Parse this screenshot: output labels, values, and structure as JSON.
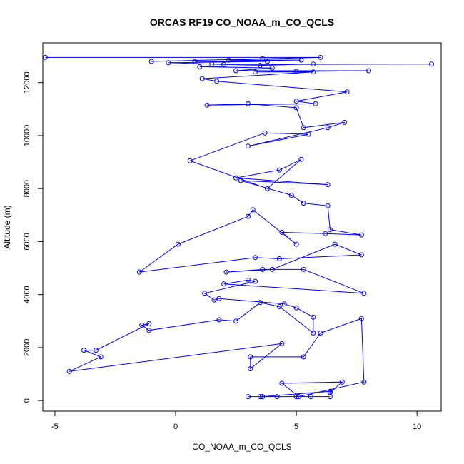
{
  "chart_data": {
    "type": "line",
    "title": "ORCAS RF19 CO_NOAA_m_CO_QCLS",
    "xlabel": "CO_NOAA_m_CO_QCLS",
    "ylabel": "Altitude (m)",
    "xlim": [
      -5.5,
      11.0
    ],
    "ylim": [
      -400,
      13500
    ],
    "x_ticks": [
      -5,
      0,
      5,
      10
    ],
    "y_ticks": [
      0,
      2000,
      4000,
      6000,
      8000,
      10000,
      12000
    ],
    "grid": false,
    "legend": "none",
    "series_color": "#0000ff",
    "series": [
      {
        "name": "",
        "points": [
          [
            -5.4,
            12950
          ],
          [
            6.0,
            12950
          ],
          [
            -1.0,
            12800
          ],
          [
            3.6,
            12900
          ],
          [
            2.2,
            12850
          ],
          [
            5.2,
            12850
          ],
          [
            0.8,
            12800
          ],
          [
            3.8,
            12800
          ],
          [
            -0.3,
            12750
          ],
          [
            1.5,
            12700
          ],
          [
            2.0,
            12680
          ],
          [
            10.6,
            12700
          ],
          [
            5.7,
            12700
          ],
          [
            3.5,
            12650
          ],
          [
            1.0,
            12600
          ],
          [
            4.0,
            12550
          ],
          [
            2.5,
            12450
          ],
          [
            8.0,
            12450
          ],
          [
            5.0,
            12420
          ],
          [
            3.3,
            12400
          ],
          [
            5.7,
            12400
          ],
          [
            1.1,
            12150
          ],
          [
            1.7,
            12050
          ],
          [
            7.1,
            11650
          ],
          [
            5.0,
            11300
          ],
          [
            5.8,
            11200
          ],
          [
            1.3,
            11150
          ],
          [
            3.0,
            11200
          ],
          [
            5.0,
            11050
          ],
          [
            5.3,
            10300
          ],
          [
            7.0,
            10500
          ],
          [
            6.3,
            10300
          ],
          [
            3.0,
            9600
          ],
          [
            5.5,
            10050
          ],
          [
            3.7,
            10100
          ],
          [
            0.6,
            9050
          ],
          [
            3.8,
            8000
          ],
          [
            5.2,
            9100
          ],
          [
            4.3,
            8700
          ],
          [
            2.5,
            8400
          ],
          [
            6.3,
            8150
          ],
          [
            2.7,
            8300
          ],
          [
            4.8,
            7750
          ],
          [
            5.3,
            7450
          ],
          [
            6.3,
            7350
          ],
          [
            6.4,
            6450
          ],
          [
            7.7,
            6250
          ],
          [
            6.2,
            6300
          ],
          [
            4.4,
            6350
          ],
          [
            5.0,
            5900
          ],
          [
            3.2,
            7200
          ],
          [
            3.0,
            6950
          ],
          [
            0.1,
            5900
          ],
          [
            -1.5,
            4850
          ],
          [
            3.3,
            5400
          ],
          [
            4.3,
            5350
          ],
          [
            7.7,
            5500
          ],
          [
            6.6,
            5900
          ],
          [
            4.0,
            4950
          ],
          [
            2.1,
            4850
          ],
          [
            3.6,
            4950
          ],
          [
            5.3,
            4950
          ],
          [
            7.8,
            4050
          ],
          [
            2.0,
            4400
          ],
          [
            3.0,
            4550
          ],
          [
            3.3,
            4500
          ],
          [
            1.2,
            4050
          ],
          [
            1.6,
            3800
          ],
          [
            1.8,
            3850
          ],
          [
            4.5,
            3650
          ],
          [
            5.0,
            3500
          ],
          [
            5.7,
            3150
          ],
          [
            5.7,
            2550
          ],
          [
            4.3,
            3550
          ],
          [
            3.5,
            3700
          ],
          [
            2.5,
            3000
          ],
          [
            1.8,
            3050
          ],
          [
            -1.1,
            2650
          ],
          [
            -1.4,
            2850
          ],
          [
            -1.1,
            2900
          ],
          [
            -3.3,
            1900
          ],
          [
            -3.8,
            1900
          ],
          [
            -3.1,
            1650
          ],
          [
            -4.4,
            1100
          ],
          [
            4.4,
            2150
          ],
          [
            3.1,
            1200
          ],
          [
            3.1,
            1650
          ],
          [
            5.3,
            1650
          ],
          [
            6.0,
            2550
          ],
          [
            7.7,
            3100
          ],
          [
            7.8,
            700
          ],
          [
            5.1,
            150
          ],
          [
            4.4,
            650
          ],
          [
            6.9,
            700
          ],
          [
            6.4,
            300
          ],
          [
            6.4,
            350
          ],
          [
            3.6,
            150
          ],
          [
            3.0,
            150
          ],
          [
            3.5,
            150
          ],
          [
            3.6,
            150
          ],
          [
            4.2,
            150
          ],
          [
            5.0,
            150
          ],
          [
            5.6,
            150
          ],
          [
            6.4,
            150
          ]
        ]
      }
    ]
  }
}
